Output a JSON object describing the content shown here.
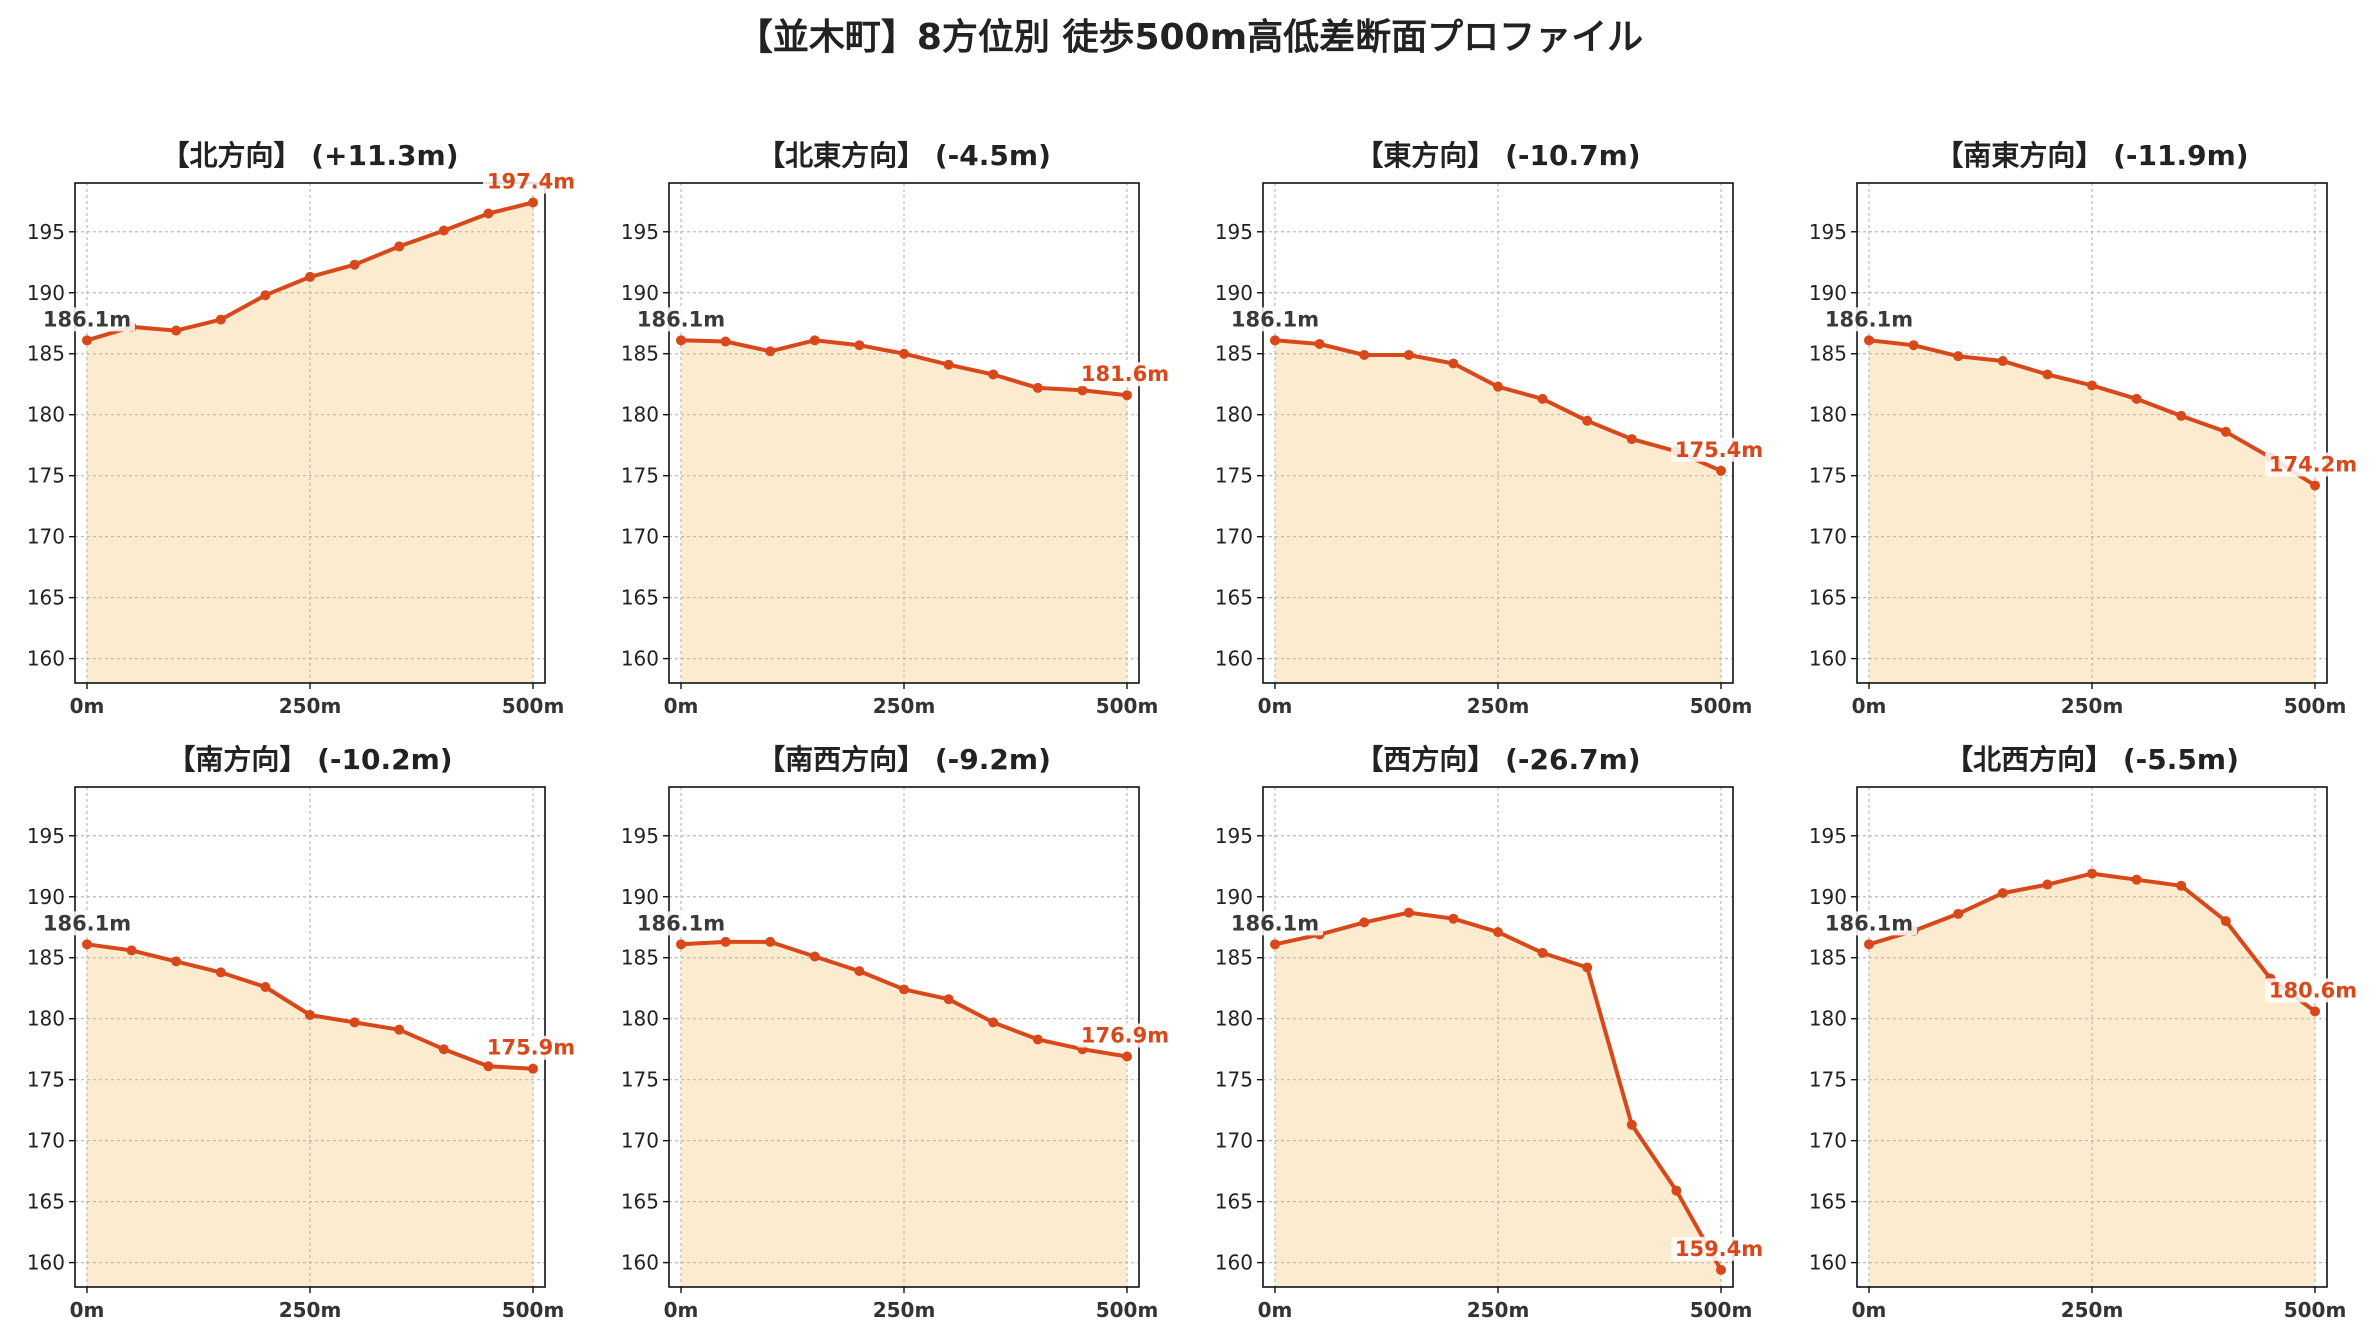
{
  "title": "【並木町】8方位別 徒歩500m高低差断面プロファイル",
  "colors": {
    "line": "#d9481a",
    "fill": "#fdebd0",
    "grid": "#bbbbbb",
    "start_label": "#3a3a3a",
    "end_label": "#d9481a"
  },
  "chart_data": [
    {
      "type": "area",
      "title": "【北方向】 (+11.3m)",
      "x": [
        0,
        50,
        100,
        150,
        200,
        250,
        300,
        350,
        400,
        450,
        500
      ],
      "xticks": [
        0,
        250,
        500
      ],
      "xtick_labels": [
        "0m",
        "250m",
        "500m"
      ],
      "yticks": [
        160,
        165,
        170,
        175,
        180,
        185,
        190,
        195
      ],
      "ylim": [
        158,
        199
      ],
      "values": [
        186.1,
        187.2,
        186.9,
        187.8,
        189.8,
        191.3,
        192.3,
        193.8,
        195.1,
        196.5,
        197.4
      ],
      "start_label": "186.1m",
      "end_label": "197.4m",
      "grid": true
    },
    {
      "type": "area",
      "title": "【北東方向】 (-4.5m)",
      "x": [
        0,
        50,
        100,
        150,
        200,
        250,
        300,
        350,
        400,
        450,
        500
      ],
      "xticks": [
        0,
        250,
        500
      ],
      "xtick_labels": [
        "0m",
        "250m",
        "500m"
      ],
      "yticks": [
        160,
        165,
        170,
        175,
        180,
        185,
        190,
        195
      ],
      "ylim": [
        158,
        199
      ],
      "values": [
        186.1,
        186.0,
        185.2,
        186.1,
        185.7,
        185.0,
        184.1,
        183.3,
        182.2,
        182.0,
        181.6
      ],
      "start_label": "186.1m",
      "end_label": "181.6m",
      "grid": true
    },
    {
      "type": "area",
      "title": "【東方向】 (-10.7m)",
      "x": [
        0,
        50,
        100,
        150,
        200,
        250,
        300,
        350,
        400,
        450,
        500
      ],
      "xticks": [
        0,
        250,
        500
      ],
      "xtick_labels": [
        "0m",
        "250m",
        "500m"
      ],
      "yticks": [
        160,
        165,
        170,
        175,
        180,
        185,
        190,
        195
      ],
      "ylim": [
        158,
        199
      ],
      "values": [
        186.1,
        185.8,
        184.9,
        184.9,
        184.2,
        182.3,
        181.3,
        179.5,
        178.0,
        177.0,
        175.4
      ],
      "start_label": "186.1m",
      "end_label": "175.4m",
      "grid": true
    },
    {
      "type": "area",
      "title": "【南東方向】 (-11.9m)",
      "x": [
        0,
        50,
        100,
        150,
        200,
        250,
        300,
        350,
        400,
        450,
        500
      ],
      "xticks": [
        0,
        250,
        500
      ],
      "xtick_labels": [
        "0m",
        "250m",
        "500m"
      ],
      "yticks": [
        160,
        165,
        170,
        175,
        180,
        185,
        190,
        195
      ],
      "ylim": [
        158,
        199
      ],
      "values": [
        186.1,
        185.7,
        184.8,
        184.4,
        183.3,
        182.4,
        181.3,
        179.9,
        178.6,
        176.5,
        174.2
      ],
      "start_label": "186.1m",
      "end_label": "174.2m",
      "grid": true
    },
    {
      "type": "area",
      "title": "【南方向】 (-10.2m)",
      "x": [
        0,
        50,
        100,
        150,
        200,
        250,
        300,
        350,
        400,
        450,
        500
      ],
      "xticks": [
        0,
        250,
        500
      ],
      "xtick_labels": [
        "0m",
        "250m",
        "500m"
      ],
      "yticks": [
        160,
        165,
        170,
        175,
        180,
        185,
        190,
        195
      ],
      "ylim": [
        158,
        199
      ],
      "values": [
        186.1,
        185.6,
        184.7,
        183.8,
        182.6,
        180.3,
        179.7,
        179.1,
        177.5,
        176.1,
        175.9
      ],
      "start_label": "186.1m",
      "end_label": "175.9m",
      "grid": true
    },
    {
      "type": "area",
      "title": "【南西方向】 (-9.2m)",
      "x": [
        0,
        50,
        100,
        150,
        200,
        250,
        300,
        350,
        400,
        450,
        500
      ],
      "xticks": [
        0,
        250,
        500
      ],
      "xtick_labels": [
        "0m",
        "250m",
        "500m"
      ],
      "yticks": [
        160,
        165,
        170,
        175,
        180,
        185,
        190,
        195
      ],
      "ylim": [
        158,
        199
      ],
      "values": [
        186.1,
        186.3,
        186.3,
        185.1,
        183.9,
        182.4,
        181.6,
        179.7,
        178.3,
        177.5,
        176.9
      ],
      "start_label": "186.1m",
      "end_label": "176.9m",
      "grid": true
    },
    {
      "type": "area",
      "title": "【西方向】 (-26.7m)",
      "x": [
        0,
        50,
        100,
        150,
        200,
        250,
        300,
        350,
        400,
        450,
        500
      ],
      "xticks": [
        0,
        250,
        500
      ],
      "xtick_labels": [
        "0m",
        "250m",
        "500m"
      ],
      "yticks": [
        160,
        165,
        170,
        175,
        180,
        185,
        190,
        195
      ],
      "ylim": [
        158,
        199
      ],
      "values": [
        186.1,
        186.9,
        187.9,
        188.7,
        188.2,
        187.1,
        185.4,
        184.2,
        171.3,
        165.9,
        159.4
      ],
      "start_label": "186.1m",
      "end_label": "159.4m",
      "grid": true
    },
    {
      "type": "area",
      "title": "【北西方向】 (-5.5m)",
      "x": [
        0,
        50,
        100,
        150,
        200,
        250,
        300,
        350,
        400,
        450,
        500
      ],
      "xticks": [
        0,
        250,
        500
      ],
      "xtick_labels": [
        "0m",
        "250m",
        "500m"
      ],
      "yticks": [
        160,
        165,
        170,
        175,
        180,
        185,
        190,
        195
      ],
      "ylim": [
        158,
        199
      ],
      "values": [
        186.1,
        187.2,
        188.6,
        190.3,
        191.0,
        191.9,
        191.4,
        190.9,
        188.0,
        183.3,
        180.6
      ],
      "start_label": "186.1m",
      "end_label": "180.6m",
      "grid": true
    }
  ]
}
